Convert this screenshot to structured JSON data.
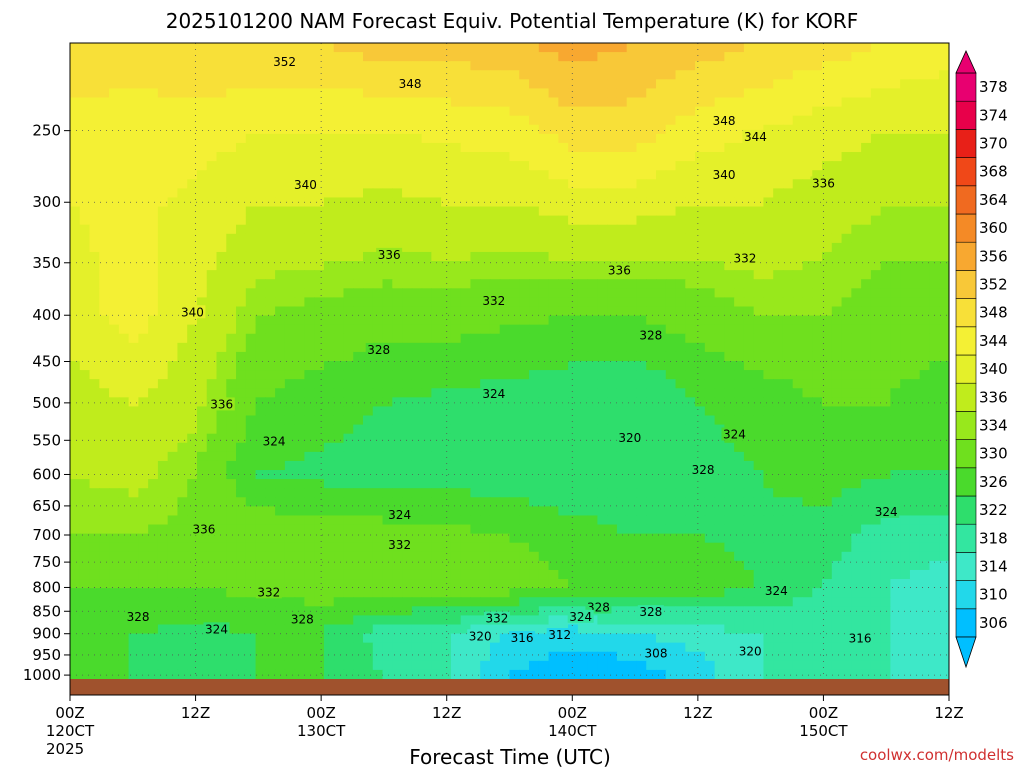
{
  "chart_data": {
    "type": "heatmap",
    "title": "2025101200 NAM Forecast Equiv. Potential Temperature (K) for KORF",
    "xlabel": "Forecast Time (UTC)",
    "credit": "coolwx.com/modelts",
    "y_axis": {
      "scale": "log-pressure",
      "inverted": true,
      "range": [
        200,
        1010
      ],
      "ticks": [
        250,
        300,
        350,
        400,
        450,
        500,
        550,
        600,
        650,
        700,
        750,
        800,
        850,
        900,
        950,
        1000
      ]
    },
    "x_axis": {
      "range_hours": [
        0,
        84
      ],
      "ticks": [
        {
          "hour": 0,
          "label": "00Z",
          "sub": "120CT",
          "sub2": "2025"
        },
        {
          "hour": 12,
          "label": "12Z",
          "sub": "",
          "sub2": ""
        },
        {
          "hour": 24,
          "label": "00Z",
          "sub": "130CT",
          "sub2": ""
        },
        {
          "hour": 36,
          "label": "12Z",
          "sub": "",
          "sub2": ""
        },
        {
          "hour": 48,
          "label": "00Z",
          "sub": "140CT",
          "sub2": ""
        },
        {
          "hour": 60,
          "label": "12Z",
          "sub": "",
          "sub2": ""
        },
        {
          "hour": 72,
          "label": "00Z",
          "sub": "150CT",
          "sub2": ""
        },
        {
          "hour": 84,
          "label": "12Z",
          "sub": "",
          "sub2": ""
        }
      ]
    },
    "grid": true,
    "colorbar": {
      "placement": "right",
      "levels": [
        306,
        310,
        314,
        318,
        322,
        326,
        330,
        334,
        336,
        340,
        344,
        348,
        352,
        356,
        360,
        364,
        368,
        370,
        374,
        378
      ],
      "colors": [
        "#00bfff",
        "#22d8ea",
        "#3ee8c8",
        "#33e6a0",
        "#2ede6c",
        "#4ada2c",
        "#6fe01e",
        "#98e81c",
        "#c0ec1c",
        "#e4f02a",
        "#f4f034",
        "#f8e038",
        "#f8c838",
        "#f8a830",
        "#f48a26",
        "#f06a20",
        "#f04818",
        "#e82018",
        "#e8004a",
        "#e80070"
      ],
      "arrows": true
    },
    "ground": {
      "color": "#a0522d"
    },
    "profiles": [
      {
        "hour": 0,
        "theta_e": [
          {
            "p": 200,
            "t": 352
          },
          {
            "p": 250,
            "t": 346
          },
          {
            "p": 300,
            "t": 344
          },
          {
            "p": 400,
            "t": 342
          },
          {
            "p": 500,
            "t": 338
          },
          {
            "p": 600,
            "t": 336
          },
          {
            "p": 700,
            "t": 334
          },
          {
            "p": 800,
            "t": 330
          },
          {
            "p": 900,
            "t": 328
          },
          {
            "p": 1000,
            "t": 326
          }
        ]
      },
      {
        "hour": 6,
        "theta_e": [
          {
            "p": 200,
            "t": 350
          },
          {
            "p": 250,
            "t": 346
          },
          {
            "p": 300,
            "t": 345
          },
          {
            "p": 400,
            "t": 346
          },
          {
            "p": 500,
            "t": 340
          },
          {
            "p": 600,
            "t": 337
          },
          {
            "p": 700,
            "t": 334
          },
          {
            "p": 800,
            "t": 330
          },
          {
            "p": 900,
            "t": 326
          },
          {
            "p": 1000,
            "t": 326
          }
        ]
      },
      {
        "hour": 12,
        "theta_e": [
          {
            "p": 200,
            "t": 352
          },
          {
            "p": 250,
            "t": 346
          },
          {
            "p": 300,
            "t": 343
          },
          {
            "p": 400,
            "t": 340
          },
          {
            "p": 500,
            "t": 337
          },
          {
            "p": 600,
            "t": 334
          },
          {
            "p": 700,
            "t": 333
          },
          {
            "p": 800,
            "t": 330
          },
          {
            "p": 900,
            "t": 325
          },
          {
            "p": 1000,
            "t": 326
          }
        ]
      },
      {
        "hour": 18,
        "theta_e": [
          {
            "p": 200,
            "t": 352
          },
          {
            "p": 250,
            "t": 344
          },
          {
            "p": 300,
            "t": 340
          },
          {
            "p": 400,
            "t": 334
          },
          {
            "p": 500,
            "t": 330
          },
          {
            "p": 600,
            "t": 326
          },
          {
            "p": 700,
            "t": 333
          },
          {
            "p": 800,
            "t": 331
          },
          {
            "p": 900,
            "t": 326
          },
          {
            "p": 1000,
            "t": 326
          }
        ]
      },
      {
        "hour": 24,
        "theta_e": [
          {
            "p": 200,
            "t": 352
          },
          {
            "p": 250,
            "t": 344
          },
          {
            "p": 300,
            "t": 340
          },
          {
            "p": 400,
            "t": 333
          },
          {
            "p": 500,
            "t": 328
          },
          {
            "p": 600,
            "t": 325
          },
          {
            "p": 700,
            "t": 332
          },
          {
            "p": 800,
            "t": 332
          },
          {
            "p": 900,
            "t": 326
          },
          {
            "p": 1000,
            "t": 326
          }
        ]
      },
      {
        "hour": 30,
        "theta_e": [
          {
            "p": 200,
            "t": 354
          },
          {
            "p": 250,
            "t": 344
          },
          {
            "p": 300,
            "t": 339
          },
          {
            "p": 400,
            "t": 332
          },
          {
            "p": 500,
            "t": 326
          },
          {
            "p": 600,
            "t": 324
          },
          {
            "p": 700,
            "t": 332
          },
          {
            "p": 800,
            "t": 333
          },
          {
            "p": 900,
            "t": 320
          },
          {
            "p": 1000,
            "t": 322
          }
        ]
      },
      {
        "hour": 36,
        "theta_e": [
          {
            "p": 200,
            "t": 354
          },
          {
            "p": 250,
            "t": 345
          },
          {
            "p": 300,
            "t": 340
          },
          {
            "p": 400,
            "t": 332
          },
          {
            "p": 500,
            "t": 325
          },
          {
            "p": 600,
            "t": 324
          },
          {
            "p": 700,
            "t": 331
          },
          {
            "p": 800,
            "t": 333
          },
          {
            "p": 900,
            "t": 318
          },
          {
            "p": 1000,
            "t": 318
          }
        ]
      },
      {
        "hour": 42,
        "theta_e": [
          {
            "p": 200,
            "t": 355
          },
          {
            "p": 250,
            "t": 346
          },
          {
            "p": 300,
            "t": 340
          },
          {
            "p": 400,
            "t": 331
          },
          {
            "p": 500,
            "t": 324
          },
          {
            "p": 600,
            "t": 324
          },
          {
            "p": 700,
            "t": 330
          },
          {
            "p": 800,
            "t": 332
          },
          {
            "p": 900,
            "t": 314
          },
          {
            "p": 1000,
            "t": 310
          }
        ]
      },
      {
        "hour": 48,
        "theta_e": [
          {
            "p": 200,
            "t": 358
          },
          {
            "p": 250,
            "t": 350
          },
          {
            "p": 300,
            "t": 342
          },
          {
            "p": 400,
            "t": 330
          },
          {
            "p": 500,
            "t": 323
          },
          {
            "p": 600,
            "t": 322
          },
          {
            "p": 700,
            "t": 328
          },
          {
            "p": 800,
            "t": 330
          },
          {
            "p": 900,
            "t": 312
          },
          {
            "p": 1000,
            "t": 306
          }
        ]
      },
      {
        "hour": 54,
        "theta_e": [
          {
            "p": 200,
            "t": 356
          },
          {
            "p": 250,
            "t": 350
          },
          {
            "p": 300,
            "t": 342
          },
          {
            "p": 400,
            "t": 330
          },
          {
            "p": 500,
            "t": 322
          },
          {
            "p": 600,
            "t": 322
          },
          {
            "p": 700,
            "t": 326
          },
          {
            "p": 800,
            "t": 330
          },
          {
            "p": 900,
            "t": 314
          },
          {
            "p": 1000,
            "t": 308
          }
        ]
      },
      {
        "hour": 60,
        "theta_e": [
          {
            "p": 200,
            "t": 354
          },
          {
            "p": 250,
            "t": 346
          },
          {
            "p": 300,
            "t": 340
          },
          {
            "p": 400,
            "t": 332
          },
          {
            "p": 500,
            "t": 326
          },
          {
            "p": 600,
            "t": 324
          },
          {
            "p": 700,
            "t": 326
          },
          {
            "p": 800,
            "t": 328
          },
          {
            "p": 900,
            "t": 316
          },
          {
            "p": 1000,
            "t": 312
          }
        ]
      },
      {
        "hour": 66,
        "theta_e": [
          {
            "p": 200,
            "t": 352
          },
          {
            "p": 250,
            "t": 344
          },
          {
            "p": 300,
            "t": 340
          },
          {
            "p": 400,
            "t": 334
          },
          {
            "p": 500,
            "t": 328
          },
          {
            "p": 600,
            "t": 326
          },
          {
            "p": 700,
            "t": 325
          },
          {
            "p": 800,
            "t": 326
          },
          {
            "p": 900,
            "t": 318
          },
          {
            "p": 1000,
            "t": 318
          }
        ]
      },
      {
        "hour": 72,
        "theta_e": [
          {
            "p": 200,
            "t": 350
          },
          {
            "p": 250,
            "t": 342
          },
          {
            "p": 300,
            "t": 338
          },
          {
            "p": 400,
            "t": 334
          },
          {
            "p": 500,
            "t": 330
          },
          {
            "p": 600,
            "t": 328
          },
          {
            "p": 700,
            "t": 324
          },
          {
            "p": 800,
            "t": 322
          },
          {
            "p": 900,
            "t": 318
          },
          {
            "p": 1000,
            "t": 320
          }
        ]
      },
      {
        "hour": 78,
        "theta_e": [
          {
            "p": 200,
            "t": 348
          },
          {
            "p": 250,
            "t": 340
          },
          {
            "p": 300,
            "t": 336
          },
          {
            "p": 400,
            "t": 332
          },
          {
            "p": 500,
            "t": 330
          },
          {
            "p": 600,
            "t": 326
          },
          {
            "p": 700,
            "t": 320
          },
          {
            "p": 800,
            "t": 318
          },
          {
            "p": 900,
            "t": 318
          },
          {
            "p": 1000,
            "t": 318
          }
        ]
      },
      {
        "hour": 84,
        "theta_e": [
          {
            "p": 200,
            "t": 346
          },
          {
            "p": 250,
            "t": 340
          },
          {
            "p": 300,
            "t": 336
          },
          {
            "p": 400,
            "t": 332
          },
          {
            "p": 500,
            "t": 328
          },
          {
            "p": 600,
            "t": 326
          },
          {
            "p": 700,
            "t": 320
          },
          {
            "p": 800,
            "t": 316
          },
          {
            "p": 900,
            "t": 314
          },
          {
            "p": 1000,
            "t": 316
          }
        ]
      }
    ],
    "contour_labels": [
      {
        "hour": 20.5,
        "p": 210,
        "text": "352"
      },
      {
        "hour": 32.5,
        "p": 222,
        "text": "348"
      },
      {
        "hour": 62.5,
        "p": 244,
        "text": "348"
      },
      {
        "hour": 65.5,
        "p": 254,
        "text": "344"
      },
      {
        "hour": 22.5,
        "p": 287,
        "text": "340"
      },
      {
        "hour": 62.5,
        "p": 280,
        "text": "340"
      },
      {
        "hour": 72,
        "p": 286,
        "text": "336"
      },
      {
        "hour": 30.5,
        "p": 343,
        "text": "336"
      },
      {
        "hour": 52.5,
        "p": 357,
        "text": "336"
      },
      {
        "hour": 64.5,
        "p": 346,
        "text": "332"
      },
      {
        "hour": 40.5,
        "p": 386,
        "text": "332"
      },
      {
        "hour": 11.7,
        "p": 397,
        "text": "340"
      },
      {
        "hour": 55.5,
        "p": 421,
        "text": "328"
      },
      {
        "hour": 29.5,
        "p": 437,
        "text": "328"
      },
      {
        "hour": 40.5,
        "p": 489,
        "text": "324"
      },
      {
        "hour": 14.5,
        "p": 502,
        "text": "336"
      },
      {
        "hour": 53.5,
        "p": 547,
        "text": "320"
      },
      {
        "hour": 63.5,
        "p": 542,
        "text": "324"
      },
      {
        "hour": 19.5,
        "p": 552,
        "text": "324"
      },
      {
        "hour": 60.5,
        "p": 593,
        "text": "328"
      },
      {
        "hour": 31.5,
        "p": 665,
        "text": "324"
      },
      {
        "hour": 78,
        "p": 660,
        "text": "324"
      },
      {
        "hour": 12.8,
        "p": 690,
        "text": "336"
      },
      {
        "hour": 31.5,
        "p": 718,
        "text": "332"
      },
      {
        "hour": 67.5,
        "p": 807,
        "text": "324"
      },
      {
        "hour": 19,
        "p": 810,
        "text": "332"
      },
      {
        "hour": 50.5,
        "p": 842,
        "text": "328"
      },
      {
        "hour": 55.5,
        "p": 852,
        "text": "328"
      },
      {
        "hour": 6.5,
        "p": 862,
        "text": "328"
      },
      {
        "hour": 22.2,
        "p": 868,
        "text": "328"
      },
      {
        "hour": 40.8,
        "p": 866,
        "text": "332"
      },
      {
        "hour": 48.8,
        "p": 862,
        "text": "324"
      },
      {
        "hour": 14,
        "p": 890,
        "text": "324"
      },
      {
        "hour": 39.2,
        "p": 906,
        "text": "320"
      },
      {
        "hour": 43.2,
        "p": 910,
        "text": "316"
      },
      {
        "hour": 46.8,
        "p": 903,
        "text": "312"
      },
      {
        "hour": 56,
        "p": 947,
        "text": "308"
      },
      {
        "hour": 65,
        "p": 942,
        "text": "320"
      },
      {
        "hour": 75.5,
        "p": 911,
        "text": "316"
      }
    ]
  }
}
